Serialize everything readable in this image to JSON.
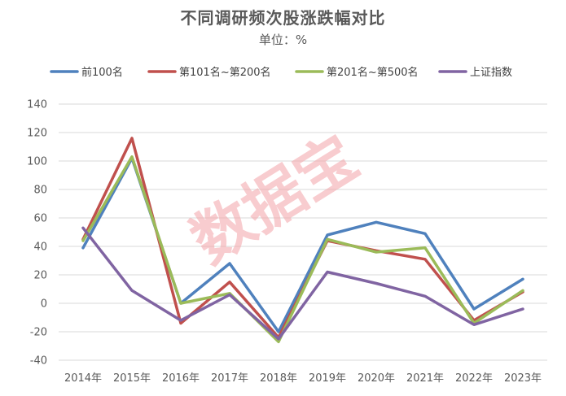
{
  "chart_data": {
    "type": "line",
    "title": "不同调研频次股涨跌幅对比",
    "subtitle": "单位：%",
    "categories": [
      "2014年",
      "2015年",
      "2016年",
      "2017年",
      "2018年",
      "2019年",
      "2020年",
      "2021年",
      "2022年",
      "2023年"
    ],
    "ylim": [
      -40,
      140
    ],
    "yticks": [
      -40,
      -20,
      0,
      20,
      40,
      60,
      80,
      100,
      120,
      140
    ],
    "grid": true,
    "legend_position": "top",
    "series": [
      {
        "name": "前100名",
        "color": "#4F81BD",
        "values": [
          39,
          102,
          0,
          28,
          -20,
          48,
          57,
          49,
          -4,
          17
        ]
      },
      {
        "name": "第101名~第200名",
        "color": "#C0504D",
        "values": [
          45,
          116,
          -14,
          15,
          -24,
          44,
          37,
          31,
          -12,
          8
        ]
      },
      {
        "name": "第201名~第500名",
        "color": "#9BBB59",
        "values": [
          44,
          103,
          0,
          7,
          -27,
          45,
          36,
          39,
          -14,
          9
        ]
      },
      {
        "name": "上证指数",
        "color": "#8064A2",
        "values": [
          53,
          9,
          -12,
          6,
          -25,
          22,
          14,
          5,
          -15,
          -4
        ]
      }
    ],
    "watermark": "数据宝"
  }
}
